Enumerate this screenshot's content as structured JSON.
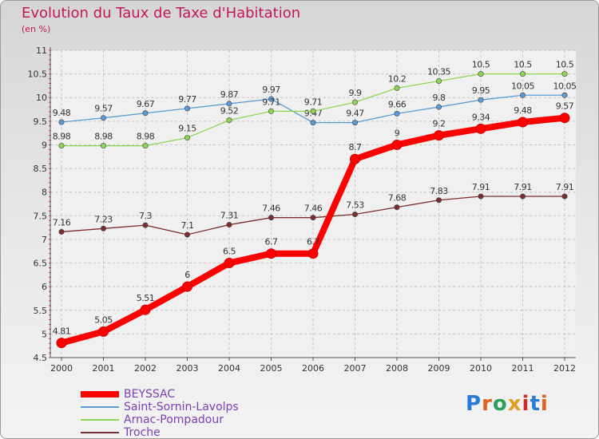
{
  "header": {
    "title": "Evolution du Taux de Taxe d'Habitation",
    "subtitle": "(en %)"
  },
  "brand": {
    "name": "Proxiti"
  },
  "chart_data": {
    "type": "line",
    "title": "Evolution du Taux de Taxe d'Habitation",
    "subtitle": "(en %)",
    "xlabel": "",
    "ylabel": "",
    "categories": [
      "2000",
      "2001",
      "2002",
      "2003",
      "2004",
      "2005",
      "2006",
      "2007",
      "2008",
      "2009",
      "2010",
      "2011",
      "2012"
    ],
    "ylim": [
      4.5,
      11
    ],
    "yticks": [
      "4.5",
      "5",
      "5.5",
      "6",
      "6.5",
      "7",
      "7.5",
      "8",
      "8.5",
      "9",
      "9.5",
      "10",
      "10.5",
      "11"
    ],
    "grid": true,
    "legend_position": "bottom-left",
    "series": [
      {
        "name": "BEYSSAC",
        "color": "#ff0000",
        "values": [
          4.81,
          5.05,
          5.51,
          6,
          6.5,
          6.7,
          6.7,
          8.7,
          9,
          9.2,
          9.34,
          9.48,
          9.57
        ],
        "labels": [
          "4.81",
          "5.05",
          "5.51",
          "6",
          "6.5",
          "6.7",
          "6.7",
          "8.7",
          "9",
          "9.2",
          "9.34",
          "9.48",
          "9.57"
        ]
      },
      {
        "name": "Saint-Sornin-Lavolps",
        "color": "#5b9bd5",
        "values": [
          9.48,
          9.57,
          9.67,
          9.77,
          9.87,
          9.97,
          9.47,
          9.47,
          9.66,
          9.8,
          9.95,
          10.05,
          10.05
        ],
        "labels": [
          "9.48",
          "9.57",
          "9.67",
          "9.77",
          "9.87",
          "9.97",
          "9.47",
          "9.47",
          "9.66",
          "9.8",
          "9.95",
          "10.05",
          "10.05"
        ]
      },
      {
        "name": "Arnac-Pompadour",
        "color": "#8ed654",
        "values": [
          8.98,
          8.98,
          8.98,
          9.15,
          9.52,
          9.71,
          9.71,
          9.9,
          10.2,
          10.35,
          10.5,
          10.5,
          10.5
        ],
        "labels": [
          "8.98",
          "8.98",
          "8.98",
          "9.15",
          "9.52",
          "9.71",
          "9.71",
          "9.9",
          "10.2",
          "10.35",
          "10.5",
          "10.5",
          "10.5"
        ]
      },
      {
        "name": "Troche",
        "color": "#7a2e2e",
        "values": [
          7.16,
          7.23,
          7.3,
          7.1,
          7.31,
          7.46,
          7.46,
          7.53,
          7.68,
          7.83,
          7.91,
          7.91,
          7.91
        ],
        "labels": [
          "7.16",
          "7.23",
          "7.3",
          "7.1",
          "7.31",
          "7.46",
          "7.46",
          "7.53",
          "7.68",
          "7.83",
          "7.91",
          "7.91",
          "7.91"
        ]
      }
    ]
  }
}
